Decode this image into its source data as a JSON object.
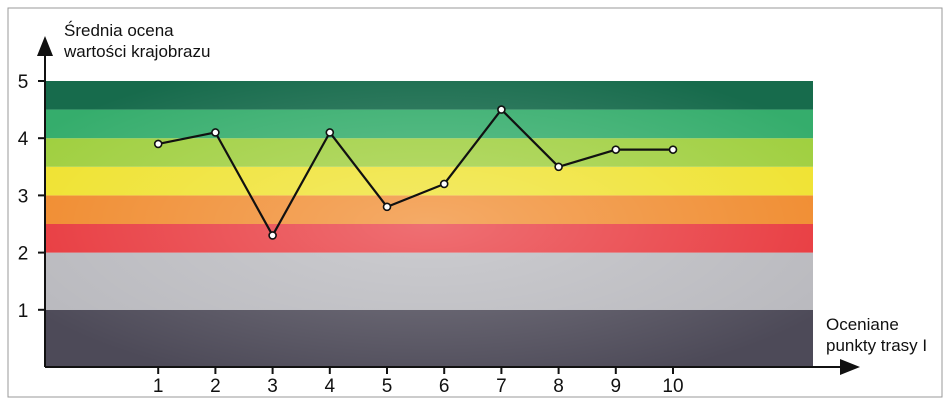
{
  "chart_data": {
    "type": "line",
    "title": "",
    "ylabel_lines": [
      "Średnia ocena",
      "wartości krajobrazu"
    ],
    "xlabel_lines": [
      "Oceniane",
      "punkty trasy I"
    ],
    "x": [
      1,
      2,
      3,
      4,
      5,
      6,
      7,
      8,
      9,
      10
    ],
    "series": [
      {
        "values": [
          3.9,
          4.1,
          2.3,
          4.1,
          2.8,
          3.2,
          4.5,
          3.5,
          3.8,
          3.8
        ]
      }
    ],
    "ylim": [
      0,
      5
    ],
    "xlim": [
      0,
      12
    ],
    "yticks": [
      1,
      2,
      3,
      4,
      5
    ],
    "xticks": [
      1,
      2,
      3,
      4,
      5,
      6,
      7,
      8,
      9,
      10
    ],
    "grid": false,
    "legend": "none",
    "background_bands": [
      {
        "from": 0,
        "to": 1,
        "color": "#4d4a58"
      },
      {
        "from": 1,
        "to": 2,
        "color": "#b9b9be"
      },
      {
        "from": 2,
        "to": 2.5,
        "color": "#e8383d"
      },
      {
        "from": 2.5,
        "to": 3,
        "color": "#f08a2c"
      },
      {
        "from": 3,
        "to": 3.5,
        "color": "#efe22e"
      },
      {
        "from": 3.5,
        "to": 4,
        "color": "#9fcf3e"
      },
      {
        "from": 4,
        "to": 4.5,
        "color": "#35ad6c"
      },
      {
        "from": 4.5,
        "to": 5,
        "color": "#176b4c"
      }
    ],
    "line_color": "#111111",
    "marker_fill": "#ffffff"
  }
}
